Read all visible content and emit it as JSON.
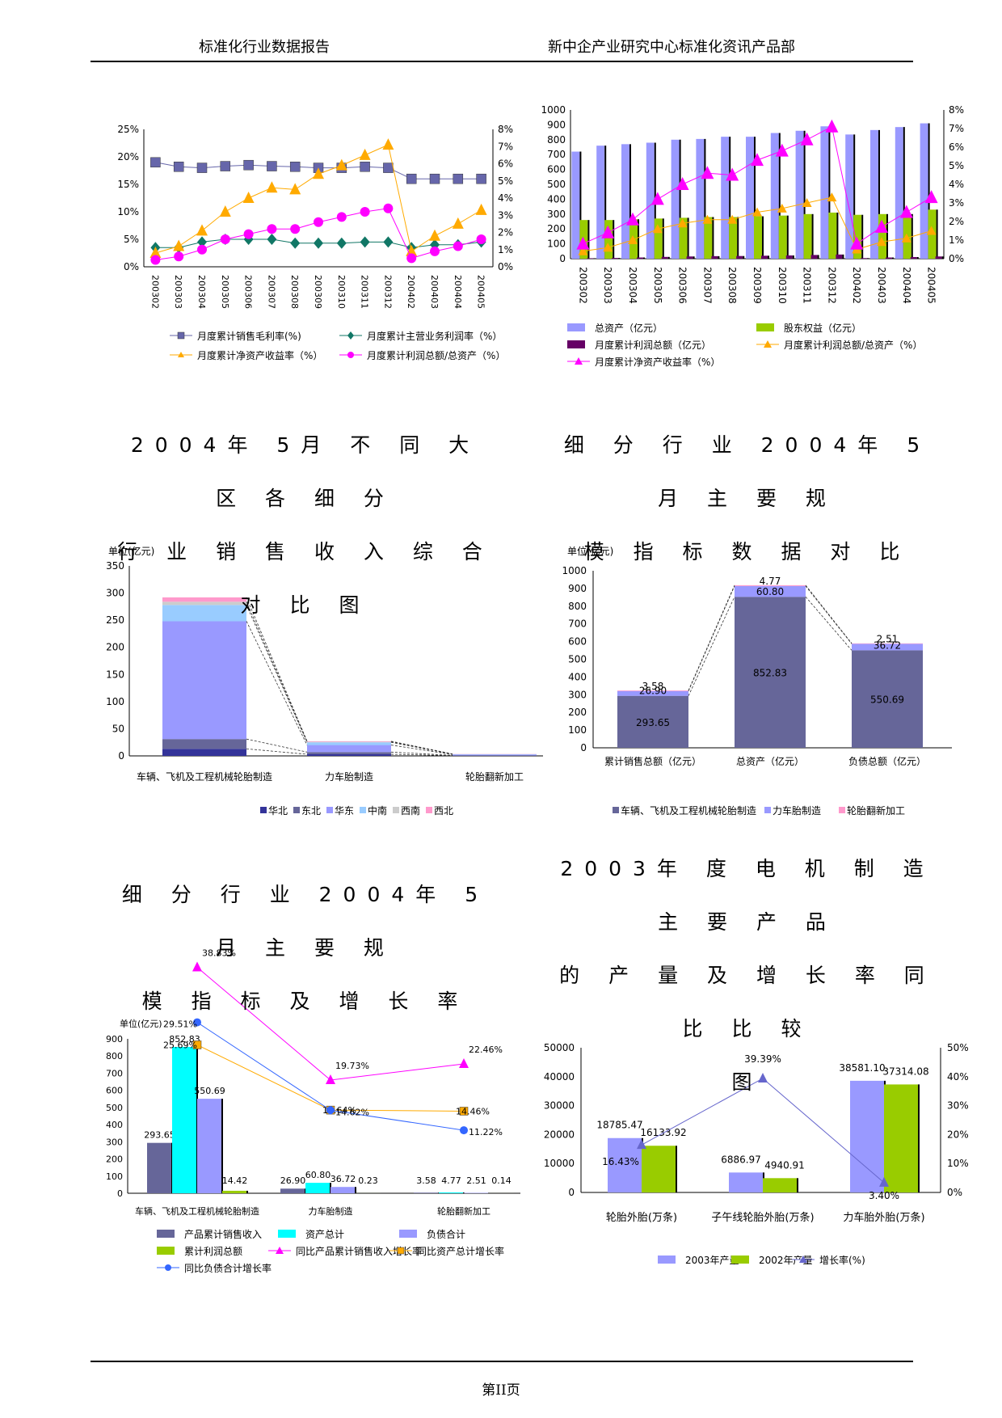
{
  "header": {
    "left": "标准化行业数据报告",
    "right": "新中企产业研究中心标准化资讯产品部"
  },
  "titles": {
    "t1a": "2004年 5月 不 同 大 区 各 细 分",
    "t1b": "行 业 销 售 收 入 综 合 对 比 图",
    "t2a": "细 分 行 业 2004年 5月 主 要 规",
    "t2b": "模 指 标 数 据 对 比",
    "t3a": "细 分 行 业 2004年 5月 主 要 规",
    "t3b": "模 指 标 及 增 长 率",
    "t4a": "2003年 度 电 机 制 造 主 要 产 品",
    "t4b": "的 产 量 及 增 长 率 同 比 比 较",
    "t4c": "图"
  },
  "footer": "第II页",
  "chart_data": [
    {
      "type": "line",
      "x": [
        "200302",
        "200303",
        "200304",
        "200305",
        "200306",
        "200307",
        "200308",
        "200309",
        "200310",
        "200311",
        "200312",
        "200402",
        "200403",
        "200404",
        "200405"
      ],
      "left_ticks": [
        "0%",
        "5%",
        "10%",
        "15%",
        "20%",
        "25%"
      ],
      "right_ticks": [
        "0%",
        "1%",
        "2%",
        "3%",
        "4%",
        "5%",
        "6%",
        "7%",
        "8%"
      ],
      "ylim_left": [
        0,
        25
      ],
      "ylim_right": [
        0,
        8
      ],
      "series": [
        {
          "name": "月度累计销售毛利率(%)",
          "axis": "left",
          "color": "#6666aa",
          "marker": "square",
          "values": [
            19.0,
            18.2,
            18.0,
            18.3,
            18.5,
            18.3,
            18.2,
            18.0,
            18.0,
            18.2,
            18.0,
            16.0,
            16.0,
            16.0,
            16.0
          ]
        },
        {
          "name": "月度累计主营业务利润率（%）",
          "axis": "left",
          "color": "#117766",
          "marker": "diamond",
          "values": [
            3.5,
            3.5,
            4.5,
            5.0,
            5.0,
            5.0,
            4.3,
            4.3,
            4.3,
            4.5,
            4.5,
            3.5,
            4.0,
            4.0,
            4.5
          ]
        },
        {
          "name": "月度累计净资产收益率（%）",
          "axis": "right",
          "color": "#ffaa00",
          "marker": "triangle",
          "values": [
            0.8,
            1.2,
            2.1,
            3.2,
            4.0,
            4.6,
            4.5,
            5.4,
            5.9,
            6.5,
            7.1,
            0.9,
            1.8,
            2.5,
            3.3
          ]
        },
        {
          "name": "月度累计利润总额/总资产（%）",
          "axis": "right",
          "color": "#ff00ff",
          "marker": "circle",
          "values": [
            0.4,
            0.6,
            1.0,
            1.6,
            1.9,
            2.2,
            2.2,
            2.6,
            2.9,
            3.2,
            3.4,
            0.5,
            0.9,
            1.2,
            1.6
          ]
        }
      ]
    },
    {
      "type": "bar",
      "x": [
        "200302",
        "200303",
        "200304",
        "200305",
        "200306",
        "200307",
        "200308",
        "200309",
        "200310",
        "200311",
        "200312",
        "200402",
        "200403",
        "200404",
        "200405"
      ],
      "left_ticks": [
        "0",
        "100",
        "200",
        "300",
        "400",
        "500",
        "600",
        "700",
        "800",
        "900",
        "1000"
      ],
      "right_ticks": [
        "0%",
        "1%",
        "2%",
        "3%",
        "4%",
        "5%",
        "6%",
        "7%",
        "8%"
      ],
      "ylim_left": [
        0,
        1000
      ],
      "ylim_right": [
        0,
        8
      ],
      "bar_series": [
        {
          "name": "总资产（亿元）",
          "color": "#9999ff",
          "values": [
            720,
            760,
            770,
            780,
            800,
            805,
            820,
            820,
            845,
            860,
            890,
            835,
            865,
            885,
            910
          ]
        },
        {
          "name": "股东权益（亿元）",
          "color": "#99cc00",
          "values": [
            260,
            260,
            265,
            270,
            275,
            280,
            280,
            285,
            290,
            300,
            310,
            295,
            300,
            300,
            330
          ]
        },
        {
          "name": "月度累计利润总额（亿元）",
          "color": "#660066",
          "values": [
            3,
            5,
            8,
            12,
            15,
            17,
            18,
            20,
            22,
            25,
            28,
            4,
            8,
            11,
            15
          ]
        }
      ],
      "line_series": [
        {
          "name": "月度累计利润总额/总资产（%）",
          "color": "#ffaa00",
          "marker": "triangle-small",
          "values": [
            0.4,
            0.6,
            1.0,
            1.6,
            1.9,
            2.1,
            2.1,
            2.5,
            2.7,
            3.0,
            3.3,
            0.5,
            0.9,
            1.1,
            1.5
          ]
        },
        {
          "name": "月度累计净资产收益率（%）",
          "color": "#ff00ff",
          "marker": "triangle",
          "values": [
            0.8,
            1.4,
            2.1,
            3.2,
            4.0,
            4.6,
            4.5,
            5.3,
            5.8,
            6.4,
            7.1,
            0.8,
            1.7,
            2.5,
            3.3
          ]
        }
      ]
    },
    {
      "type": "bar",
      "stacked": true,
      "unit": "单位(亿元)",
      "categories": [
        "车辆、飞机及工程机械轮胎制造",
        "力车胎制造",
        "轮胎翻新加工"
      ],
      "ticks": [
        "0",
        "50",
        "100",
        "150",
        "200",
        "250",
        "300",
        "350"
      ],
      "ylim": [
        0,
        350
      ],
      "series": [
        {
          "name": "华北",
          "color": "#333399",
          "values": [
            13,
            3,
            0.5
          ]
        },
        {
          "name": "东北",
          "color": "#666699",
          "values": [
            18,
            4,
            0.5
          ]
        },
        {
          "name": "华东",
          "color": "#9999ff",
          "values": [
            217,
            13,
            1.5
          ]
        },
        {
          "name": "中南",
          "color": "#99ccff",
          "values": [
            30,
            5,
            0.6
          ]
        },
        {
          "name": "西南",
          "color": "#cccccc",
          "values": [
            6,
            1,
            0.2
          ]
        },
        {
          "name": "西北",
          "color": "#ff99cc",
          "values": [
            8,
            1,
            0.3
          ]
        }
      ]
    },
    {
      "type": "bar",
      "stacked": true,
      "unit": "单位(亿元)",
      "categories": [
        "累计销售总额（亿元）",
        "总资产（亿元）",
        "负债总额（亿元）"
      ],
      "ticks": [
        "0",
        "100",
        "200",
        "300",
        "400",
        "500",
        "600",
        "700",
        "800",
        "900",
        "1000"
      ],
      "ylim": [
        0,
        1000
      ],
      "series": [
        {
          "name": "车辆、飞机及工程机械轮胎制造",
          "color": "#666699",
          "values": [
            293.65,
            852.83,
            550.69
          ],
          "labels": [
            "293.65",
            "852.83",
            "550.69"
          ]
        },
        {
          "name": "力车胎制造",
          "color": "#9999ff",
          "values": [
            26.9,
            60.8,
            36.72
          ],
          "labels": [
            "26.90",
            "60.80",
            "36.72"
          ]
        },
        {
          "name": "轮胎翻新加工",
          "color": "#ff99cc",
          "values": [
            3.58,
            4.77,
            2.51
          ],
          "labels": [
            "3.58",
            "4.77",
            "2.51"
          ]
        }
      ]
    },
    {
      "type": "bar",
      "unit": "单位(亿元)",
      "categories": [
        "车辆、飞机及工程机械轮胎制造",
        "力车胎制造",
        "轮胎翻新加工"
      ],
      "ticks": [
        "0",
        "100",
        "200",
        "300",
        "400",
        "500",
        "600",
        "700",
        "800",
        "900"
      ],
      "ylim": [
        0,
        900
      ],
      "bar_series": [
        {
          "name": "产品累计销售收入",
          "color": "#666699",
          "values": [
            293.65,
            26.9,
            3.58
          ],
          "labels": [
            "293.65",
            "26.90",
            "3.58"
          ]
        },
        {
          "name": "资产总计",
          "color": "#00ffff",
          "values": [
            852.83,
            60.8,
            4.77
          ],
          "labels": [
            "852.83",
            "60.80",
            "4.77"
          ]
        },
        {
          "name": "负债合计",
          "color": "#9999ff",
          "values": [
            550.69,
            36.72,
            2.51
          ],
          "labels": [
            "550.69",
            "36.72",
            "2.51"
          ]
        },
        {
          "name": "累计利润总额",
          "color": "#99cc00",
          "values": [
            14.42,
            0.23,
            0.14
          ],
          "labels": [
            "14.42",
            "0.23",
            "0.14"
          ]
        }
      ],
      "line_series": [
        {
          "name": "同比产品累计销售收入增长率",
          "color": "#ff00ff",
          "marker": "triangle",
          "values": [
            38.83,
            19.73,
            22.46
          ],
          "labels": [
            "38.83%",
            "19.73%",
            "22.46%"
          ]
        },
        {
          "name": "同比资产总计增长率",
          "color": "#ffaa00",
          "marker": "square",
          "values": [
            25.69,
            14.64,
            14.46
          ],
          "labels": [
            "25.69%",
            "14.64%",
            "14.46%"
          ]
        },
        {
          "name": "同比负债合计增长率",
          "color": "#3366ff",
          "marker": "circle",
          "values": [
            29.51,
            14.62,
            11.22
          ],
          "labels": [
            "29.51%",
            "14.62%",
            "11.22%"
          ]
        }
      ]
    },
    {
      "type": "bar",
      "categories": [
        "轮胎外胎(万条)",
        "子午线轮胎外胎(万条)",
        "力车胎外胎(万条)"
      ],
      "left_ticks": [
        "0",
        "10000",
        "20000",
        "30000",
        "40000",
        "50000"
      ],
      "right_ticks": [
        "0%",
        "10%",
        "20%",
        "30%",
        "40%",
        "50%"
      ],
      "ylim_left": [
        0,
        50000
      ],
      "ylim_right": [
        0,
        50
      ],
      "bar_series": [
        {
          "name": "2003年产量",
          "color": "#9999ff",
          "values": [
            18785.47,
            6886.97,
            38581.1
          ],
          "labels": [
            "18785.47",
            "6886.97",
            "38581.10"
          ]
        },
        {
          "name": "2002年产量",
          "color": "#99cc00",
          "values": [
            16133.92,
            4940.91,
            37314.08
          ],
          "labels": [
            "16133.92",
            "4940.91",
            "37314.08"
          ]
        }
      ],
      "line_series": [
        {
          "name": "增长率(%)",
          "color": "#6666cc",
          "marker": "triangle",
          "values": [
            16.43,
            39.39,
            3.4
          ],
          "labels": [
            "16.43%",
            "39.39%",
            "3.40%"
          ]
        }
      ]
    }
  ]
}
